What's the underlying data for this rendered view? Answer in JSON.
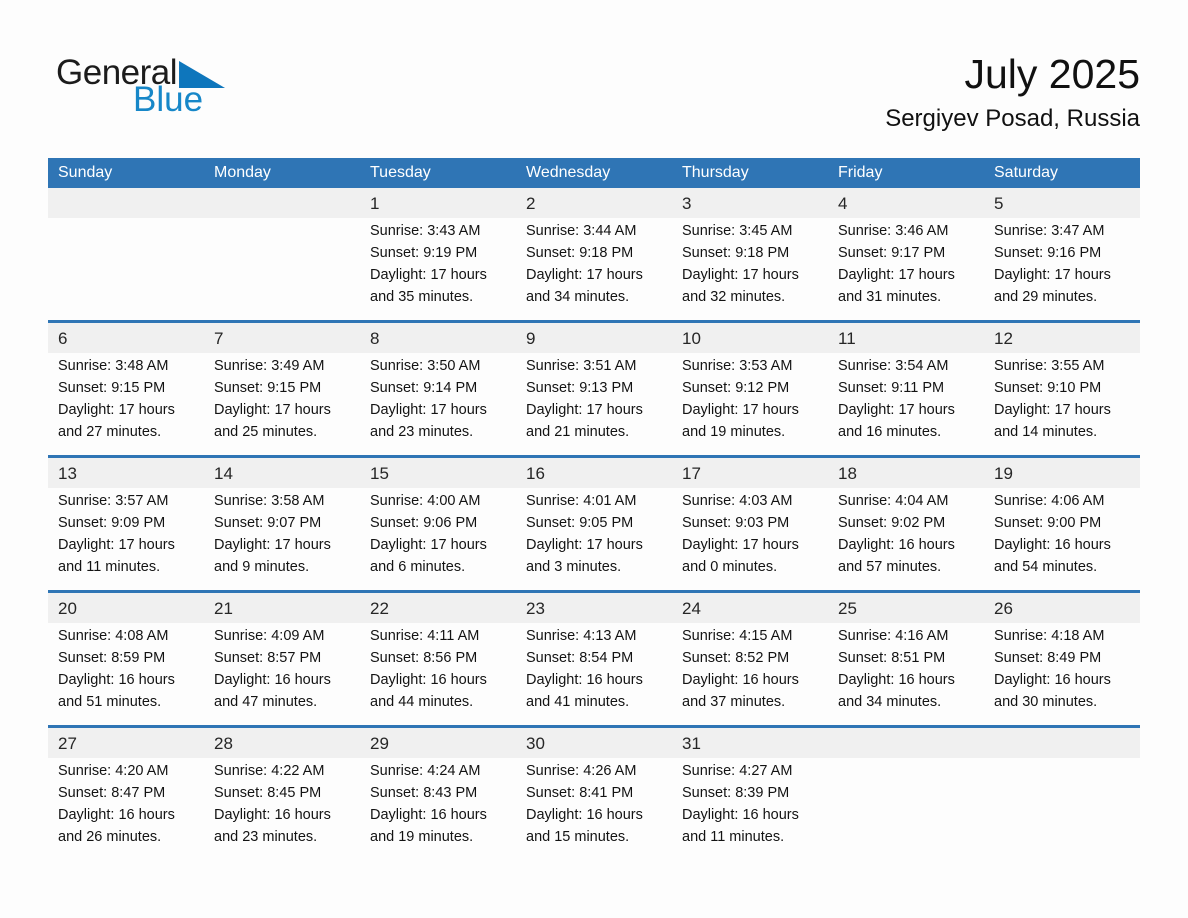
{
  "logo": {
    "part1": "General",
    "part2": "Blue"
  },
  "header": {
    "title": "July 2025",
    "subtitle": "Sergiyev Posad, Russia"
  },
  "colors": {
    "header_blue": "#2F75B5",
    "week_divider_blue": "#2F75B5",
    "number_band_gray": "#F0F0F0",
    "logo_text_blue": "#1787C8",
    "logo_triangle_blue": "#0E76BC",
    "weekday_text": "#FFFFFF",
    "body_text": "#131313"
  },
  "calendar": {
    "weekdays": [
      "Sunday",
      "Monday",
      "Tuesday",
      "Wednesday",
      "Thursday",
      "Friday",
      "Saturday"
    ],
    "labels": {
      "sunrise": "Sunrise:",
      "sunset": "Sunset:",
      "daylight": "Daylight:",
      "hours": "hours",
      "and": "and",
      "minutes": "minutes."
    },
    "weeks": [
      [
        null,
        null,
        {
          "day": 1,
          "sunrise": "3:43 AM",
          "sunset": "9:19 PM",
          "daylight_hours": 17,
          "daylight_minutes": 35
        },
        {
          "day": 2,
          "sunrise": "3:44 AM",
          "sunset": "9:18 PM",
          "daylight_hours": 17,
          "daylight_minutes": 34
        },
        {
          "day": 3,
          "sunrise": "3:45 AM",
          "sunset": "9:18 PM",
          "daylight_hours": 17,
          "daylight_minutes": 32
        },
        {
          "day": 4,
          "sunrise": "3:46 AM",
          "sunset": "9:17 PM",
          "daylight_hours": 17,
          "daylight_minutes": 31
        },
        {
          "day": 5,
          "sunrise": "3:47 AM",
          "sunset": "9:16 PM",
          "daylight_hours": 17,
          "daylight_minutes": 29
        }
      ],
      [
        {
          "day": 6,
          "sunrise": "3:48 AM",
          "sunset": "9:15 PM",
          "daylight_hours": 17,
          "daylight_minutes": 27
        },
        {
          "day": 7,
          "sunrise": "3:49 AM",
          "sunset": "9:15 PM",
          "daylight_hours": 17,
          "daylight_minutes": 25
        },
        {
          "day": 8,
          "sunrise": "3:50 AM",
          "sunset": "9:14 PM",
          "daylight_hours": 17,
          "daylight_minutes": 23
        },
        {
          "day": 9,
          "sunrise": "3:51 AM",
          "sunset": "9:13 PM",
          "daylight_hours": 17,
          "daylight_minutes": 21
        },
        {
          "day": 10,
          "sunrise": "3:53 AM",
          "sunset": "9:12 PM",
          "daylight_hours": 17,
          "daylight_minutes": 19
        },
        {
          "day": 11,
          "sunrise": "3:54 AM",
          "sunset": "9:11 PM",
          "daylight_hours": 17,
          "daylight_minutes": 16
        },
        {
          "day": 12,
          "sunrise": "3:55 AM",
          "sunset": "9:10 PM",
          "daylight_hours": 17,
          "daylight_minutes": 14
        }
      ],
      [
        {
          "day": 13,
          "sunrise": "3:57 AM",
          "sunset": "9:09 PM",
          "daylight_hours": 17,
          "daylight_minutes": 11
        },
        {
          "day": 14,
          "sunrise": "3:58 AM",
          "sunset": "9:07 PM",
          "daylight_hours": 17,
          "daylight_minutes": 9
        },
        {
          "day": 15,
          "sunrise": "4:00 AM",
          "sunset": "9:06 PM",
          "daylight_hours": 17,
          "daylight_minutes": 6
        },
        {
          "day": 16,
          "sunrise": "4:01 AM",
          "sunset": "9:05 PM",
          "daylight_hours": 17,
          "daylight_minutes": 3
        },
        {
          "day": 17,
          "sunrise": "4:03 AM",
          "sunset": "9:03 PM",
          "daylight_hours": 17,
          "daylight_minutes": 0
        },
        {
          "day": 18,
          "sunrise": "4:04 AM",
          "sunset": "9:02 PM",
          "daylight_hours": 16,
          "daylight_minutes": 57
        },
        {
          "day": 19,
          "sunrise": "4:06 AM",
          "sunset": "9:00 PM",
          "daylight_hours": 16,
          "daylight_minutes": 54
        }
      ],
      [
        {
          "day": 20,
          "sunrise": "4:08 AM",
          "sunset": "8:59 PM",
          "daylight_hours": 16,
          "daylight_minutes": 51
        },
        {
          "day": 21,
          "sunrise": "4:09 AM",
          "sunset": "8:57 PM",
          "daylight_hours": 16,
          "daylight_minutes": 47
        },
        {
          "day": 22,
          "sunrise": "4:11 AM",
          "sunset": "8:56 PM",
          "daylight_hours": 16,
          "daylight_minutes": 44
        },
        {
          "day": 23,
          "sunrise": "4:13 AM",
          "sunset": "8:54 PM",
          "daylight_hours": 16,
          "daylight_minutes": 41
        },
        {
          "day": 24,
          "sunrise": "4:15 AM",
          "sunset": "8:52 PM",
          "daylight_hours": 16,
          "daylight_minutes": 37
        },
        {
          "day": 25,
          "sunrise": "4:16 AM",
          "sunset": "8:51 PM",
          "daylight_hours": 16,
          "daylight_minutes": 34
        },
        {
          "day": 26,
          "sunrise": "4:18 AM",
          "sunset": "8:49 PM",
          "daylight_hours": 16,
          "daylight_minutes": 30
        }
      ],
      [
        {
          "day": 27,
          "sunrise": "4:20 AM",
          "sunset": "8:47 PM",
          "daylight_hours": 16,
          "daylight_minutes": 26
        },
        {
          "day": 28,
          "sunrise": "4:22 AM",
          "sunset": "8:45 PM",
          "daylight_hours": 16,
          "daylight_minutes": 23
        },
        {
          "day": 29,
          "sunrise": "4:24 AM",
          "sunset": "8:43 PM",
          "daylight_hours": 16,
          "daylight_minutes": 19
        },
        {
          "day": 30,
          "sunrise": "4:26 AM",
          "sunset": "8:41 PM",
          "daylight_hours": 16,
          "daylight_minutes": 15
        },
        {
          "day": 31,
          "sunrise": "4:27 AM",
          "sunset": "8:39 PM",
          "daylight_hours": 16,
          "daylight_minutes": 11
        },
        null,
        null
      ]
    ]
  }
}
